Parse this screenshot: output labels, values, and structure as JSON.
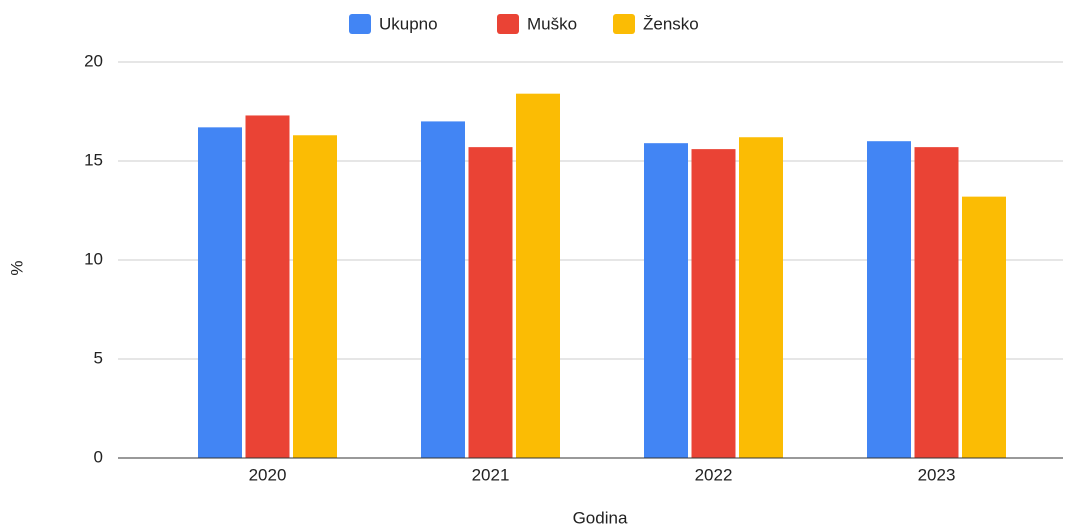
{
  "chart_data": {
    "type": "bar",
    "x_label": "Godina",
    "y_label": "%",
    "categories": [
      "2020",
      "2021",
      "2022",
      "2023"
    ],
    "series": [
      {
        "name": "Ukupno",
        "color": "#4285f4",
        "values": [
          16.7,
          17.0,
          15.9,
          16.0
        ]
      },
      {
        "name": "Muško",
        "color": "#ea4335",
        "values": [
          17.3,
          15.7,
          15.6,
          15.7
        ]
      },
      {
        "name": "Žensko",
        "color": "#fbbc04",
        "values": [
          16.3,
          18.4,
          16.2,
          13.2
        ]
      }
    ],
    "ylim": [
      0,
      20
    ],
    "yticks": [
      0,
      5,
      10,
      15,
      20
    ],
    "grid": true,
    "legend": "top"
  }
}
